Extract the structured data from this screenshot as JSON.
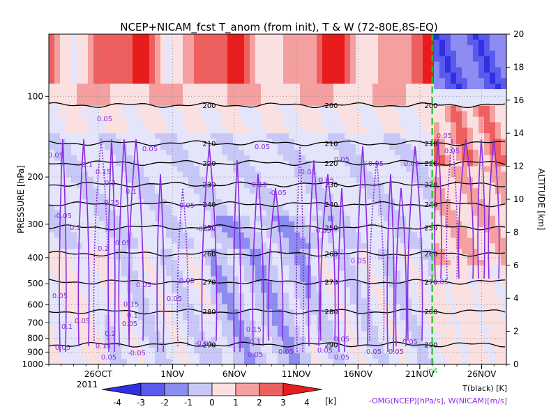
{
  "chart_data": {
    "type": "heatmap",
    "title": "NCEP+NICAM_fcst T_anom (from init), T & W  (72-80E,8S-EQ)",
    "ylabel_left": "PRESSURE [hPa]",
    "ylabel_right": "ALTITUDE [km]",
    "x_ticks": [
      "26OCT",
      "1NOV",
      "6NOV",
      "11NOV",
      "16NOV",
      "21NOV",
      "26NOV"
    ],
    "x_year": "2011",
    "x_range_days": [
      "2011-10-22",
      "2011-11-28"
    ],
    "init_marker_label": "init",
    "init_date": "2011-11-22",
    "y_ticks_pressure": [
      "100",
      "200",
      "300",
      "400",
      "500",
      "600",
      "700",
      "800",
      "900",
      "1000"
    ],
    "y_ticks_altitude": [
      "0",
      "2",
      "4",
      "6",
      "8",
      "10",
      "12",
      "14",
      "16",
      "18",
      "20"
    ],
    "altitude_range_km": [
      0,
      20
    ],
    "shading_variable": "T_anom",
    "colorbar": {
      "levels": [
        "-4",
        "-3",
        "-2",
        "-1",
        "0",
        "1",
        "2",
        "3",
        "4"
      ],
      "unit": "[k]",
      "colors": [
        "#3030e0",
        "#5a5aee",
        "#8c8cf2",
        "#c8c8f8",
        "#e4e4fa",
        "#fae0e0",
        "#f4a0a0",
        "#ee6060",
        "#e81c1c"
      ]
    },
    "temperature_contours": [
      {
        "label": "200",
        "alt_km": 15.7
      },
      {
        "label": "210",
        "alt_km": 13.4
      },
      {
        "label": "220",
        "alt_km": 12.2
      },
      {
        "label": "230",
        "alt_km": 10.9
      },
      {
        "label": "240",
        "alt_km": 9.7
      },
      {
        "label": "250",
        "alt_km": 8.3
      },
      {
        "label": "260",
        "alt_km": 6.7
      },
      {
        "label": "270",
        "alt_km": 5.0
      },
      {
        "label": "280",
        "alt_km": 3.2
      },
      {
        "label": "290",
        "alt_km": 1.2
      }
    ],
    "contour_labels_black": [
      "200",
      "200",
      "200",
      "200",
      "210",
      "210",
      "220",
      "230",
      "240",
      "250",
      "260",
      "270",
      "280",
      "290"
    ],
    "contour_labels_purple": [
      "0.05",
      "0.1",
      "0.15",
      "0.2",
      "0.25",
      "-0.05"
    ],
    "legend_notes": [
      {
        "text": "T(black) [K]",
        "color": "#000000"
      },
      {
        "text": "-OMG(NCEP)[hPa/s], W(NICAM)[m/s]",
        "color": "#8a2be2"
      }
    ]
  }
}
